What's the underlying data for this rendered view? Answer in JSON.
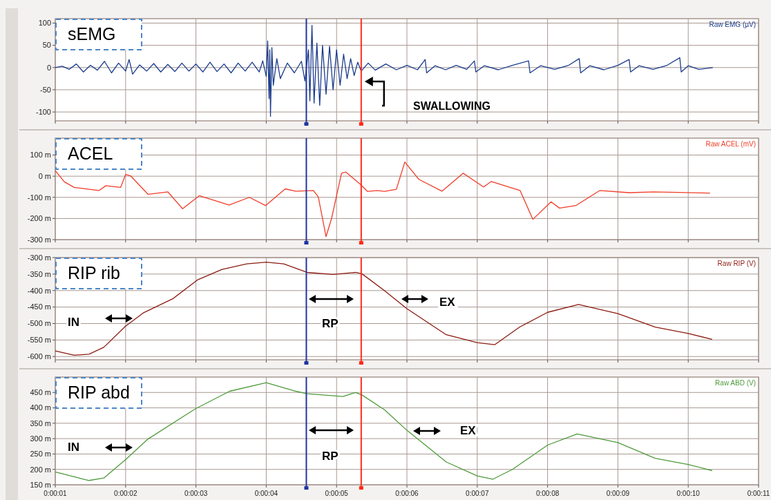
{
  "chart_data": [
    {
      "type": "line",
      "title": "sEMG",
      "xlim": [
        1,
        11
      ],
      "xticks": [
        {
          "value": 1,
          "label": null
        },
        {
          "value": 2,
          "label": null
        },
        {
          "value": 3,
          "label": null
        },
        {
          "value": 4,
          "label": null
        },
        {
          "value": 5,
          "label": null
        },
        {
          "value": 6,
          "label": null
        },
        {
          "value": 7,
          "label": null
        },
        {
          "value": 8,
          "label": null
        },
        {
          "value": 9,
          "label": null
        },
        {
          "value": 10,
          "label": null
        },
        {
          "value": 11,
          "label": null
        }
      ],
      "ylim": [
        -120,
        110
      ],
      "yticks": [
        100,
        50,
        0,
        -50,
        -100
      ],
      "grid": true,
      "legend": "top right",
      "tick_labels": "y",
      "marker": "none",
      "series": [
        {
          "name": "Raw EMG (µV)",
          "color": "#1a3b8c",
          "x": [
            1.0,
            1.1,
            1.2,
            1.3,
            1.4,
            1.5,
            1.6,
            1.7,
            1.8,
            1.9,
            2.0,
            2.05,
            2.1,
            2.2,
            2.3,
            2.4,
            2.5,
            2.6,
            2.7,
            2.8,
            2.9,
            3.0,
            3.1,
            3.2,
            3.3,
            3.4,
            3.5,
            3.6,
            3.7,
            3.8,
            3.9,
            3.95,
            4.0,
            4.02,
            4.04,
            4.05,
            4.06,
            4.08,
            4.1,
            4.15,
            4.2,
            4.3,
            4.4,
            4.5,
            4.55,
            4.6,
            4.62,
            4.65,
            4.68,
            4.72,
            4.76,
            4.8,
            4.85,
            4.9,
            4.95,
            5.0,
            5.05,
            5.1,
            5.15,
            5.2,
            5.25,
            5.3,
            5.35,
            5.45,
            5.55,
            5.7,
            5.85,
            6.0,
            6.15,
            6.26,
            6.28,
            6.4,
            6.55,
            6.7,
            6.85,
            6.96,
            6.98,
            7.1,
            7.3,
            7.5,
            7.73,
            7.75,
            7.9,
            8.1,
            8.3,
            8.45,
            8.47,
            8.6,
            8.8,
            9.0,
            9.16,
            9.18,
            9.3,
            9.5,
            9.7,
            9.88,
            9.9,
            10.0,
            10.15,
            10.35
          ],
          "values": [
            0,
            3,
            -4,
            8,
            -10,
            5,
            -6,
            14,
            -12,
            10,
            -8,
            18,
            -15,
            6,
            -8,
            9,
            -10,
            7,
            -9,
            10,
            -8,
            8,
            -10,
            12,
            -9,
            8,
            -12,
            10,
            -8,
            12,
            -10,
            15,
            -20,
            60,
            -70,
            40,
            -110,
            45,
            -40,
            20,
            -25,
            10,
            -12,
            14,
            -30,
            40,
            -75,
            95,
            -80,
            55,
            -85,
            50,
            -60,
            48,
            -50,
            40,
            -40,
            30,
            -25,
            20,
            -18,
            12,
            -8,
            10,
            -6,
            8,
            -5,
            5,
            -5,
            18,
            -12,
            4,
            -5,
            5,
            -4,
            15,
            -10,
            4,
            -5,
            5,
            15,
            -12,
            4,
            -4,
            5,
            20,
            -12,
            4,
            -5,
            5,
            18,
            -10,
            4,
            -4,
            5,
            22,
            -10,
            4,
            -4,
            0
          ]
        }
      ],
      "ref_lines": [
        {
          "axis": "x",
          "value": 4.57,
          "color": "#1f35a0"
        },
        {
          "axis": "x",
          "value": 5.35,
          "color": "#ff2a1a"
        }
      ],
      "annotations": [
        "SWALLOWING"
      ]
    },
    {
      "type": "line",
      "title": "ACEL",
      "xlim": [
        1,
        11
      ],
      "xticks": [
        {
          "value": 1,
          "label": null
        },
        {
          "value": 2,
          "label": null
        },
        {
          "value": 3,
          "label": null
        },
        {
          "value": 4,
          "label": null
        },
        {
          "value": 5,
          "label": null
        },
        {
          "value": 6,
          "label": null
        },
        {
          "value": 7,
          "label": null
        },
        {
          "value": 8,
          "label": null
        },
        {
          "value": 9,
          "label": null
        },
        {
          "value": 10,
          "label": null
        },
        {
          "value": 11,
          "label": null
        }
      ],
      "ylim": [
        -300,
        180
      ],
      "yticks": [
        {
          "value": 100,
          "label": "100 m"
        },
        {
          "value": 0,
          "label": "0 m"
        },
        {
          "value": -100,
          "label": "-100 m"
        },
        {
          "value": -200,
          "label": "-200 m"
        },
        {
          "value": -300,
          "label": "-300 m"
        }
      ],
      "grid": true,
      "legend": "top right",
      "tick_labels": "y",
      "marker": "none",
      "series": [
        {
          "name": "Raw ACEL (mV)",
          "color": "#f03c28",
          "x": [
            1.0,
            1.13,
            1.27,
            1.62,
            1.72,
            1.93,
            2.0,
            2.07,
            2.32,
            2.6,
            2.81,
            3.05,
            3.47,
            3.76,
            3.99,
            4.27,
            4.42,
            4.67,
            4.74,
            4.85,
            4.93,
            5.07,
            5.13,
            5.34,
            5.44,
            5.58,
            5.68,
            5.85,
            5.97,
            6.17,
            6.5,
            6.8,
            7.09,
            7.2,
            7.61,
            7.79,
            8.05,
            8.17,
            8.4,
            8.74,
            9.16,
            9.51,
            10.31
          ],
          "values": [
            26,
            -27,
            -53,
            -68,
            -45,
            -53,
            8,
            2,
            -86,
            -74,
            -154,
            -92,
            -136,
            -100,
            -139,
            -60,
            -71,
            -68,
            -98,
            -286,
            -198,
            14,
            20,
            -39,
            -72,
            -68,
            -72,
            -62,
            67,
            -15,
            -71,
            14,
            -51,
            -25,
            -68,
            -204,
            -121,
            -151,
            -139,
            -68,
            -78,
            -74,
            -80
          ]
        }
      ],
      "ref_lines": [
        {
          "axis": "x",
          "value": 4.57,
          "color": "#1f35a0"
        },
        {
          "axis": "x",
          "value": 5.35,
          "color": "#ff2a1a"
        }
      ]
    },
    {
      "type": "line",
      "title": "RIP rib",
      "xlim": [
        1,
        11
      ],
      "xticks": [
        {
          "value": 1,
          "label": null
        },
        {
          "value": 2,
          "label": null
        },
        {
          "value": 3,
          "label": null
        },
        {
          "value": 4,
          "label": null
        },
        {
          "value": 5,
          "label": null
        },
        {
          "value": 6,
          "label": null
        },
        {
          "value": 7,
          "label": null
        },
        {
          "value": 8,
          "label": null
        },
        {
          "value": 9,
          "label": null
        },
        {
          "value": 10,
          "label": null
        },
        {
          "value": 11,
          "label": null
        }
      ],
      "ylim": [
        -610,
        -300
      ],
      "yticks": [
        {
          "value": -300,
          "label": "-300 m"
        },
        {
          "value": -350,
          "label": "-350 m"
        },
        {
          "value": -400,
          "label": "-400 m"
        },
        {
          "value": -450,
          "label": "-450 m"
        },
        {
          "value": -500,
          "label": "-500 m"
        },
        {
          "value": -550,
          "label": "-550 m"
        },
        {
          "value": -600,
          "label": "-600 m"
        }
      ],
      "grid": true,
      "legend": "top right",
      "tick_labels": "y",
      "marker": "none",
      "series": [
        {
          "name": "Raw RIP (V)",
          "color": "#8b1a10",
          "x": [
            1.0,
            1.27,
            1.48,
            1.69,
            2.0,
            2.25,
            2.67,
            3.02,
            3.37,
            3.72,
            4.0,
            4.25,
            4.58,
            4.95,
            5.27,
            5.36,
            5.68,
            6.0,
            6.56,
            7.0,
            7.25,
            7.6,
            8.0,
            8.44,
            9.0,
            9.53,
            10.0,
            10.34
          ],
          "values": [
            -583,
            -596,
            -593,
            -572,
            -508,
            -468,
            -425,
            -368,
            -336,
            -319,
            -314,
            -319,
            -345,
            -351,
            -345,
            -349,
            -400,
            -455,
            -534,
            -558,
            -564,
            -511,
            -466,
            -442,
            -470,
            -511,
            -530,
            -548
          ]
        }
      ],
      "ref_lines": [
        {
          "axis": "x",
          "value": 4.57,
          "color": "#1f35a0"
        },
        {
          "axis": "x",
          "value": 5.35,
          "color": "#ff2a1a"
        }
      ],
      "annotations": [
        "IN",
        "RP",
        "EX"
      ]
    },
    {
      "type": "line",
      "title": "RIP abd",
      "xlim": [
        1,
        11
      ],
      "xticks": [
        {
          "value": 1,
          "label": "0:00:01"
        },
        {
          "value": 2,
          "label": "0:00:02"
        },
        {
          "value": 3,
          "label": "0:00:03"
        },
        {
          "value": 4,
          "label": "0:00:04"
        },
        {
          "value": 5,
          "label": "0:00:05"
        },
        {
          "value": 6,
          "label": "0:00:06"
        },
        {
          "value": 7,
          "label": "0:00:07"
        },
        {
          "value": 8,
          "label": "0:00:08"
        },
        {
          "value": 9,
          "label": "0:00:09"
        },
        {
          "value": 10,
          "label": "0:00:10"
        },
        {
          "value": 11,
          "label": "0:00:11"
        }
      ],
      "ylim": [
        150,
        500
      ],
      "yticks": [
        {
          "value": 450,
          "label": "450 m"
        },
        {
          "value": 400,
          "label": "400 m"
        },
        {
          "value": 350,
          "label": "350 m"
        },
        {
          "value": 300,
          "label": "300 m"
        },
        {
          "value": 250,
          "label": "250 m"
        },
        {
          "value": 200,
          "label": "200 m"
        },
        {
          "value": 150,
          "label": "150 m"
        }
      ],
      "grid": true,
      "legend": "top right",
      "marker": "none",
      "series": [
        {
          "name": "Raw ABD (V)",
          "color": "#4e9a3a",
          "x": [
            1.0,
            1.48,
            1.69,
            2.0,
            2.32,
            3.0,
            3.48,
            4.0,
            4.42,
            4.58,
            5.09,
            5.27,
            5.36,
            5.68,
            6.0,
            6.56,
            7.0,
            7.22,
            7.5,
            8.0,
            8.42,
            9.0,
            9.53,
            10.0,
            10.34
          ],
          "values": [
            192,
            164,
            172,
            232,
            299,
            398,
            454,
            482,
            454,
            446,
            437,
            450,
            442,
            394,
            327,
            224,
            179,
            168,
            200,
            279,
            315,
            287,
            236,
            216,
            196
          ]
        }
      ],
      "ref_lines": [
        {
          "axis": "x",
          "value": 4.57,
          "color": "#1f35a0"
        },
        {
          "axis": "x",
          "value": 5.35,
          "color": "#ff2a1a"
        }
      ],
      "annotations": [
        "IN",
        "RP",
        "EX"
      ]
    }
  ]
}
